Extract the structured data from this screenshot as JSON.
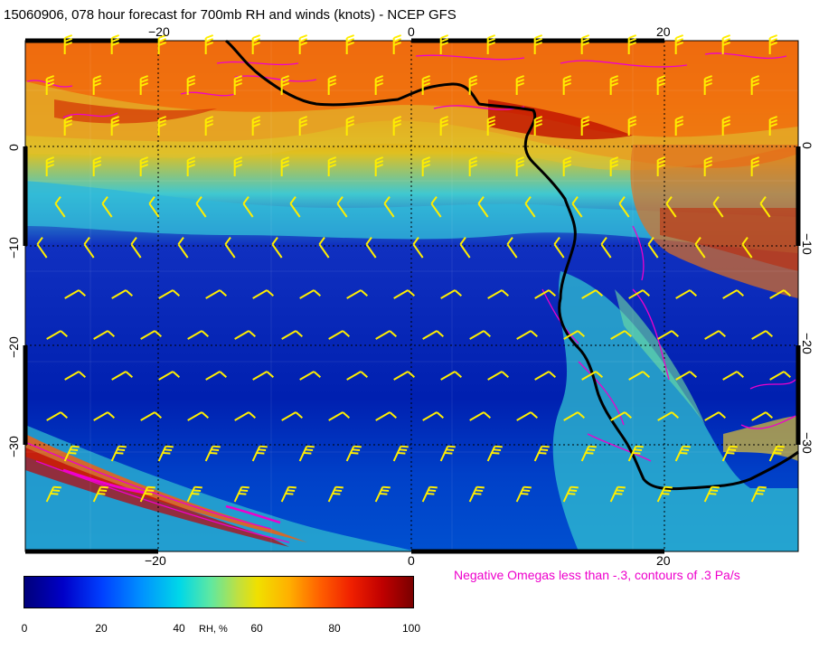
{
  "title": "15060906, 078 hour forecast for 700mb RH and winds (knots) - NCEP GFS",
  "annotation": "Negative Omegas less than -.3, contours of .3 Pa/s",
  "map": {
    "top_lon_ticks": [
      "−20",
      "0",
      "20"
    ],
    "bottom_lon_ticks": [
      "−20",
      "0",
      "20"
    ],
    "left_lat_ticks": [
      "0",
      "−10",
      "−20",
      "−30"
    ],
    "right_lat_ticks": [
      "0",
      "−10",
      "−20",
      "−30"
    ],
    "coastline_color": "#000000",
    "omega_contour_color": "#ee00cc",
    "wind_barb_color": "#ffee00"
  },
  "colorbar": {
    "ticks": [
      "0",
      "20",
      "40",
      "60",
      "80",
      "100"
    ],
    "label": "RH, %"
  }
}
